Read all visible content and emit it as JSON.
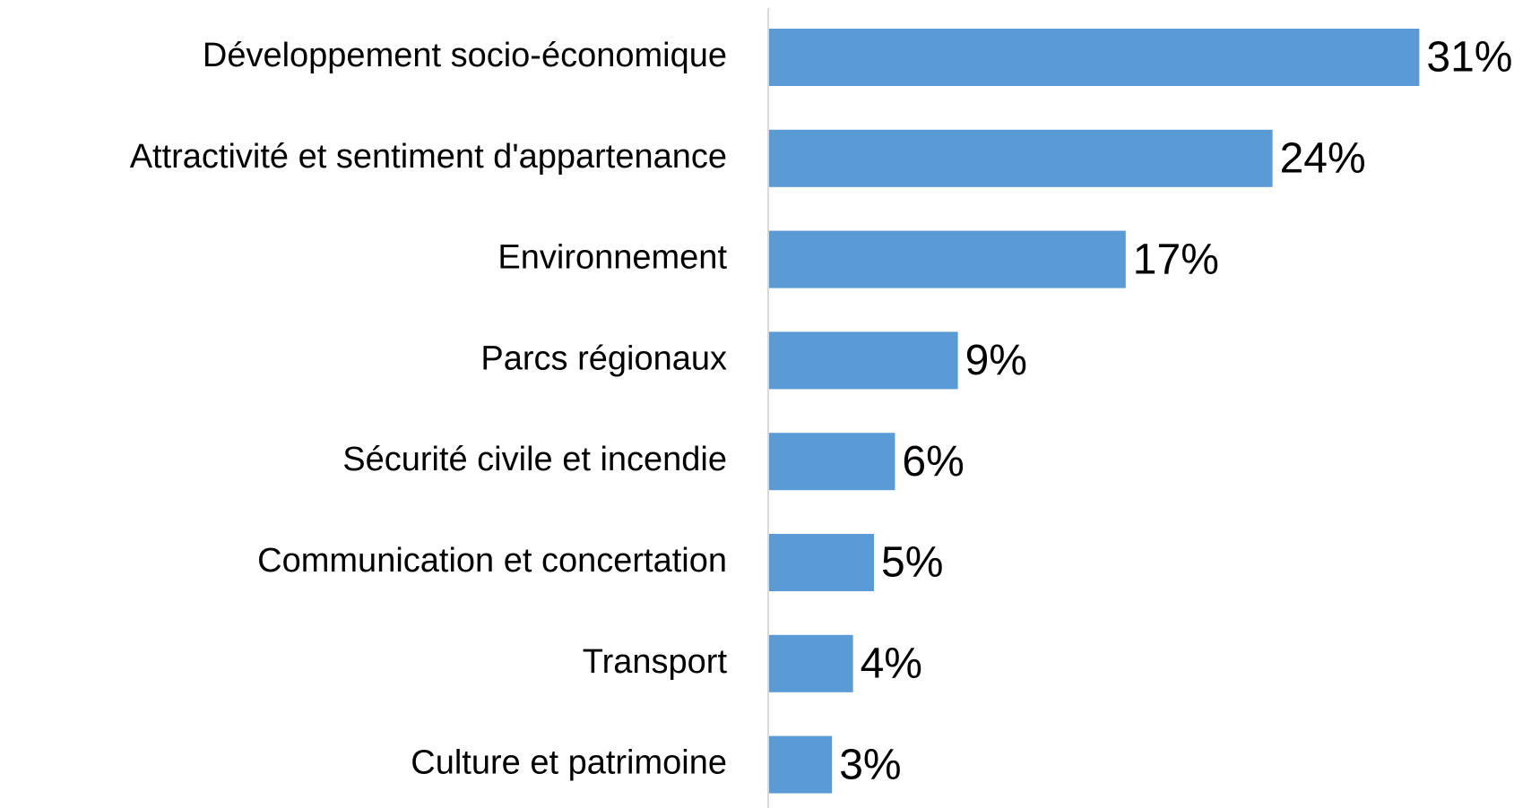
{
  "chart_data": {
    "type": "barh",
    "categories": [
      "Développement socio-économique",
      "Attractivité et sentiment d'appartenance",
      "Environnement",
      "Parcs régionaux",
      "Sécurité civile et incendie",
      "Communication et concertation",
      "Transport",
      "Culture et patrimoine"
    ],
    "values": [
      31,
      24,
      17,
      9,
      6,
      5,
      4,
      3
    ],
    "value_labels": [
      "31%",
      "24%",
      "17%",
      "9%",
      "6%",
      "5%",
      "4%",
      "3%"
    ],
    "color": "#5b9bd5"
  }
}
